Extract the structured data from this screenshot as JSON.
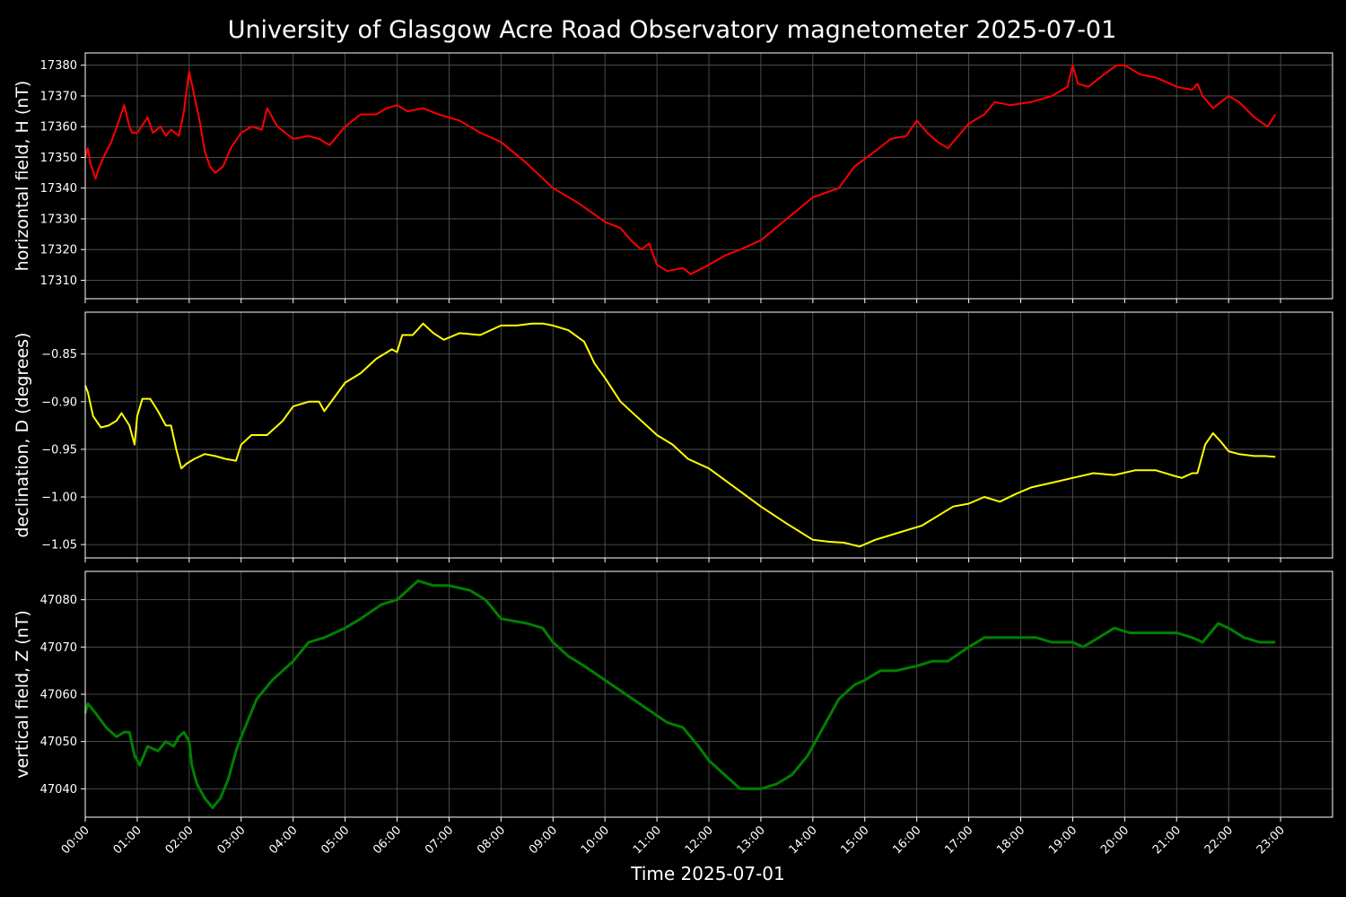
{
  "chart_data": {
    "type": "line",
    "title": "University of Glasgow Acre Road Observatory magnetometer 2025-07-01",
    "xlabel": "Time 2025-07-01",
    "x_unit": "hours",
    "xlim": [
      0,
      24
    ],
    "x_ticks": [
      "00:00",
      "01:00",
      "02:00",
      "03:00",
      "04:00",
      "05:00",
      "06:00",
      "07:00",
      "08:00",
      "09:00",
      "10:00",
      "11:00",
      "12:00",
      "13:00",
      "14:00",
      "15:00",
      "16:00",
      "17:00",
      "18:00",
      "19:00",
      "20:00",
      "21:00",
      "22:00",
      "23:00"
    ],
    "grid": true,
    "background": "#000000",
    "panels": [
      {
        "ylabel": "horizontal field, H (nT)",
        "color": "#ff0000",
        "ylim": [
          17304,
          17384
        ],
        "y_ticks": [
          17310,
          17320,
          17330,
          17340,
          17350,
          17360,
          17370,
          17380
        ],
        "y_tick_labels": [
          "17310",
          "17320",
          "17330",
          "17340",
          "17350",
          "17360",
          "17370",
          "17380"
        ],
        "series": [
          {
            "x": [
              0.0,
              0.05,
              0.1,
              0.2,
              0.25,
              0.35,
              0.5,
              0.65,
              0.75,
              0.85,
              0.9,
              1.0,
              1.2,
              1.3,
              1.45,
              1.55,
              1.65,
              1.8,
              1.9,
              1.95,
              2.0,
              2.1,
              2.2,
              2.3,
              2.4,
              2.5,
              2.65,
              2.8,
              3.0,
              3.2,
              3.4,
              3.5,
              3.7,
              4.0,
              4.3,
              4.5,
              4.7,
              5.0,
              5.3,
              5.6,
              5.8,
              6.0,
              6.2,
              6.5,
              6.8,
              7.2,
              7.6,
              8.0,
              8.5,
              9.0,
              9.5,
              10.0,
              10.3,
              10.5,
              10.7,
              10.85,
              11.0,
              11.2,
              11.5,
              11.65,
              12.0,
              12.3,
              12.6,
              13.0,
              13.5,
              14.0,
              14.5,
              14.8,
              15.2,
              15.5,
              15.8,
              16.0,
              16.2,
              16.4,
              16.6,
              16.8,
              17.0,
              17.3,
              17.5,
              17.8,
              18.2,
              18.6,
              18.9,
              19.0,
              19.1,
              19.3,
              19.6,
              19.85,
              20.0,
              20.3,
              20.6,
              21.0,
              21.3,
              21.4,
              21.5,
              21.7,
              22.0,
              22.2,
              22.5,
              22.75,
              22.9
            ],
            "y": [
              17350,
              17353,
              17348,
              17343,
              17346,
              17350,
              17355,
              17362,
              17367,
              17360,
              17358,
              17358,
              17363,
              17358,
              17360,
              17357,
              17359,
              17357,
              17365,
              17372,
              17378,
              17370,
              17362,
              17352,
              17347,
              17345,
              17347,
              17353,
              17358,
              17360,
              17359,
              17366,
              17360,
              17356,
              17357,
              17356,
              17354,
              17360,
              17364,
              17364,
              17366,
              17367,
              17365,
              17366,
              17364,
              17362,
              17358,
              17355,
              17348,
              17340,
              17335,
              17329,
              17327,
              17323,
              17320,
              17322,
              17315,
              17313,
              17314,
              17312,
              17315,
              17318,
              17320,
              17323,
              17330,
              17337,
              17340,
              17347,
              17352,
              17356,
              17357,
              17362,
              17358,
              17355,
              17353,
              17357,
              17361,
              17364,
              17368,
              17367,
              17368,
              17370,
              17373,
              17380,
              17374,
              17373,
              17377,
              17380,
              17380,
              17377,
              17376,
              17373,
              17372,
              17374,
              17370,
              17366,
              17370,
              17368,
              17363,
              17360,
              17364
            ]
          }
        ]
      },
      {
        "ylabel": "declination, D (degrees)",
        "color": "#ffff00",
        "ylim": [
          -1.064,
          -0.806
        ],
        "y_ticks": [
          -1.05,
          -1.0,
          -0.95,
          -0.9,
          -0.85
        ],
        "y_tick_labels": [
          "−1.05",
          "−1.00",
          "−0.95",
          "−0.90",
          "−0.85"
        ],
        "series": [
          {
            "x": [
              0.0,
              0.05,
              0.15,
              0.3,
              0.45,
              0.6,
              0.7,
              0.85,
              0.95,
              1.0,
              1.1,
              1.25,
              1.4,
              1.55,
              1.65,
              1.75,
              1.85,
              1.95,
              2.1,
              2.3,
              2.5,
              2.7,
              2.9,
              3.0,
              3.2,
              3.5,
              3.8,
              4.0,
              4.3,
              4.5,
              4.6,
              4.8,
              5.0,
              5.3,
              5.6,
              5.9,
              6.0,
              6.1,
              6.3,
              6.5,
              6.7,
              6.9,
              7.2,
              7.6,
              8.0,
              8.3,
              8.6,
              8.8,
              9.0,
              9.3,
              9.6,
              9.8,
              10.0,
              10.3,
              10.6,
              10.8,
              11.0,
              11.3,
              11.6,
              12.0,
              12.5,
              13.0,
              13.5,
              14.0,
              14.3,
              14.6,
              14.9,
              15.2,
              15.5,
              15.8,
              16.1,
              16.4,
              16.7,
              17.0,
              17.3,
              17.6,
              17.9,
              18.2,
              18.6,
              19.0,
              19.4,
              19.8,
              20.2,
              20.6,
              20.9,
              21.1,
              21.3,
              21.4,
              21.55,
              21.7,
              21.85,
              22.0,
              22.2,
              22.5,
              22.7,
              22.9
            ],
            "y": [
              -0.883,
              -0.89,
              -0.915,
              -0.927,
              -0.925,
              -0.92,
              -0.912,
              -0.925,
              -0.945,
              -0.915,
              -0.897,
              -0.897,
              -0.91,
              -0.925,
              -0.925,
              -0.95,
              -0.97,
              -0.965,
              -0.96,
              -0.955,
              -0.957,
              -0.96,
              -0.962,
              -0.945,
              -0.935,
              -0.935,
              -0.92,
              -0.905,
              -0.9,
              -0.9,
              -0.91,
              -0.895,
              -0.88,
              -0.87,
              -0.855,
              -0.845,
              -0.848,
              -0.83,
              -0.83,
              -0.818,
              -0.828,
              -0.835,
              -0.828,
              -0.83,
              -0.82,
              -0.82,
              -0.818,
              -0.818,
              -0.82,
              -0.825,
              -0.837,
              -0.86,
              -0.875,
              -0.9,
              -0.915,
              -0.925,
              -0.935,
              -0.945,
              -0.96,
              -0.97,
              -0.99,
              -1.01,
              -1.028,
              -1.045,
              -1.047,
              -1.048,
              -1.052,
              -1.045,
              -1.04,
              -1.035,
              -1.03,
              -1.02,
              -1.01,
              -1.007,
              -1.0,
              -1.005,
              -0.997,
              -0.99,
              -0.985,
              -0.98,
              -0.975,
              -0.977,
              -0.972,
              -0.972,
              -0.977,
              -0.98,
              -0.975,
              -0.975,
              -0.945,
              -0.933,
              -0.942,
              -0.952,
              -0.955,
              -0.957,
              -0.957,
              -0.958
            ]
          }
        ]
      },
      {
        "ylabel": "vertical field, Z (nT)",
        "color": "#008000",
        "ylim": [
          47034,
          47086
        ],
        "y_ticks": [
          47040,
          47050,
          47060,
          47070,
          47080
        ],
        "y_tick_labels": [
          "47040",
          "47050",
          "47060",
          "47070",
          "47080"
        ],
        "series": [
          {
            "x": [
              0.0,
              0.05,
              0.2,
              0.4,
              0.6,
              0.75,
              0.85,
              0.95,
              1.05,
              1.2,
              1.4,
              1.55,
              1.7,
              1.8,
              1.9,
              2.0,
              2.05,
              2.15,
              2.3,
              2.45,
              2.6,
              2.75,
              2.9,
              3.0,
              3.3,
              3.6,
              4.0,
              4.3,
              4.6,
              5.0,
              5.3,
              5.7,
              6.0,
              6.2,
              6.4,
              6.7,
              7.0,
              7.4,
              7.7,
              8.0,
              8.5,
              8.8,
              9.0,
              9.3,
              9.6,
              10.0,
              10.4,
              10.8,
              11.2,
              11.5,
              11.8,
              12.0,
              12.3,
              12.6,
              13.0,
              13.3,
              13.6,
              13.9,
              14.2,
              14.5,
              14.8,
              15.0,
              15.3,
              15.6,
              16.0,
              16.3,
              16.6,
              17.0,
              17.3,
              17.6,
              18.0,
              18.3,
              18.6,
              19.0,
              19.2,
              19.5,
              19.8,
              20.1,
              20.4,
              20.7,
              21.0,
              21.3,
              21.5,
              21.8,
              22.0,
              22.3,
              22.6,
              22.9
            ],
            "y": [
              47056,
              47058,
              47056,
              47053,
              47051,
              47052,
              47052,
              47047,
              47045,
              47049,
              47048,
              47050,
              47049,
              47051,
              47052,
              47050,
              47045,
              47041,
              47038,
              47036,
              47038,
              47042,
              47048,
              47051,
              47059,
              47063,
              47067,
              47071,
              47072,
              47074,
              47076,
              47079,
              47080,
              47082,
              47084,
              47083,
              47083,
              47082,
              47080,
              47076,
              47075,
              47074,
              47071,
              47068,
              47066,
              47063,
              47060,
              47057,
              47054,
              47053,
              47049,
              47046,
              47043,
              47040,
              47040,
              47041,
              47043,
              47047,
              47053,
              47059,
              47062,
              47063,
              47065,
              47065,
              47066,
              47067,
              47067,
              47070,
              47072,
              47072,
              47072,
              47072,
              47071,
              47071,
              47070,
              47072,
              47074,
              47073,
              47073,
              47073,
              47073,
              47072,
              47071,
              47075,
              47074,
              47072,
              47071,
              47071
            ]
          }
        ]
      }
    ]
  }
}
